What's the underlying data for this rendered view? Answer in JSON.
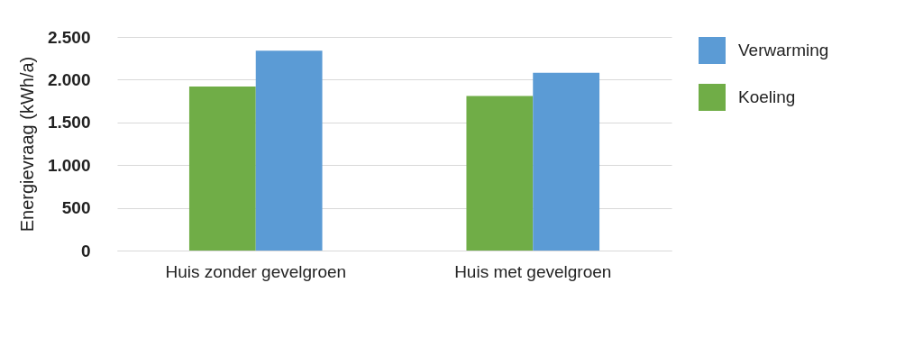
{
  "chart_data": {
    "type": "bar",
    "ylabel": "Energievraag (kWh/a)",
    "categories": [
      "Huis zonder gevelgroen",
      "Huis met gevelgroen"
    ],
    "series": [
      {
        "name": "Koeling",
        "color": "#70ad47",
        "values": [
          1920,
          1810
        ]
      },
      {
        "name": "Verwarming",
        "color": "#5b9bd5",
        "values": [
          2340,
          2080
        ]
      }
    ],
    "ylim": [
      0,
      2500
    ],
    "yticks": [
      {
        "value": 0,
        "label": "0"
      },
      {
        "value": 500,
        "label": "500"
      },
      {
        "value": 1000,
        "label": "1.000"
      },
      {
        "value": 1500,
        "label": "1.500"
      },
      {
        "value": 2000,
        "label": "2.000"
      },
      {
        "value": 2500,
        "label": "2.500"
      }
    ],
    "grid": "y",
    "legend": "right"
  }
}
